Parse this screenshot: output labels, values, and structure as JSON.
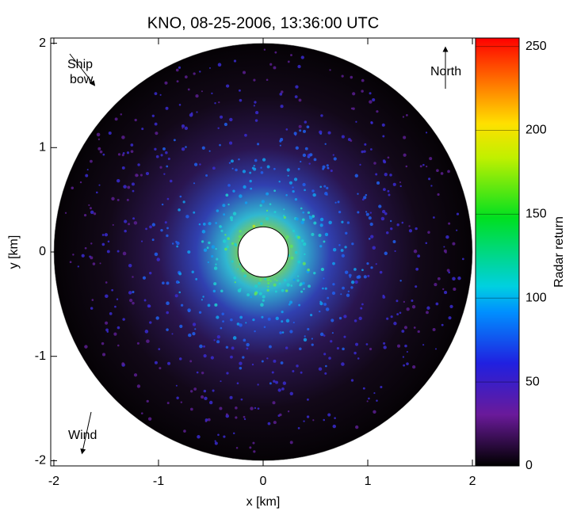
{
  "chart_data": {
    "type": "radar-image",
    "title": "KNO, 08-25-2006, 13:36:00 UTC",
    "xlabel": "x [km]",
    "ylabel": "y [km]",
    "xlim": [
      -2.03,
      2.03
    ],
    "ylim": [
      -2.05,
      2.05
    ],
    "xticks": [
      -2,
      -1,
      0,
      1,
      2
    ],
    "yticks": [
      -2,
      -1,
      0,
      1,
      2
    ],
    "colorbar": {
      "label": "Radar return",
      "lim": [
        0,
        255
      ],
      "ticks": [
        0,
        50,
        100,
        150,
        200,
        250
      ]
    },
    "annotations": {
      "ship_bow": [
        "Ship",
        "bow"
      ],
      "north": "North",
      "wind": "Wind"
    }
  }
}
